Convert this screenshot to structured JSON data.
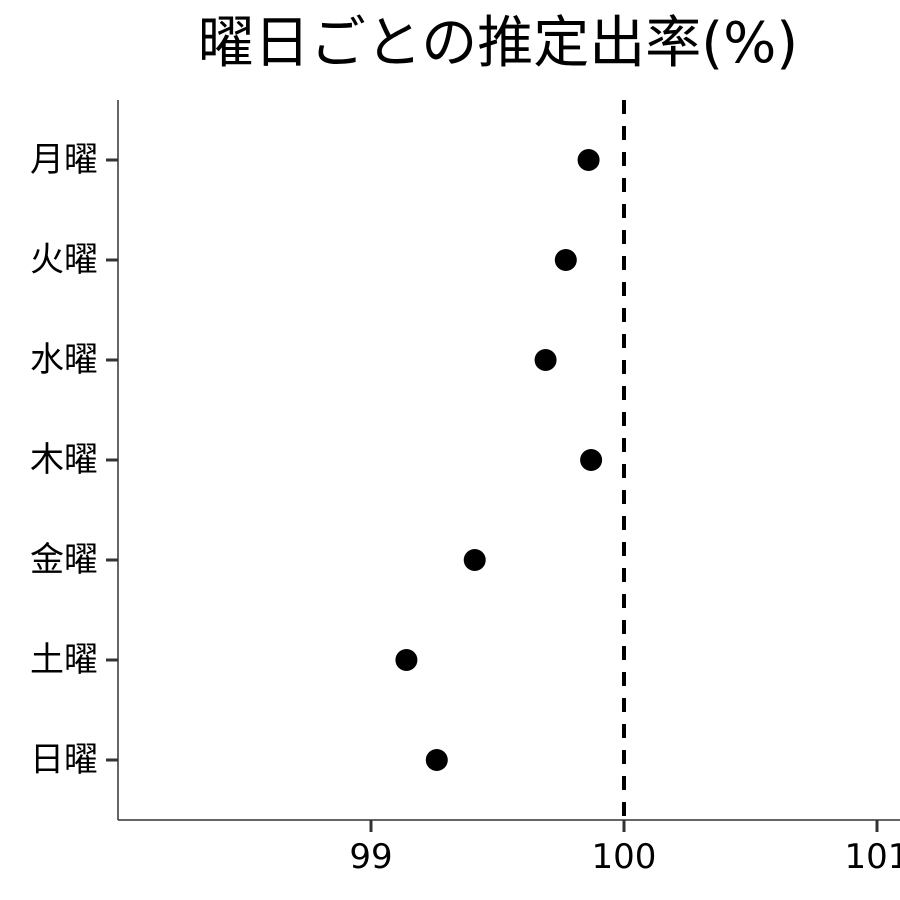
{
  "chart_data": {
    "type": "scatter",
    "title": "曜日ごとの推定出率(%)",
    "xlabel": "",
    "ylabel": "",
    "xlim": [
      98,
      101
    ],
    "x_ticks": [
      99,
      100,
      101
    ],
    "categories": [
      "月曜",
      "火曜",
      "水曜",
      "木曜",
      "金曜",
      "土曜",
      "日曜"
    ],
    "values": [
      99.86,
      99.77,
      99.69,
      99.87,
      99.41,
      99.14,
      99.26
    ],
    "reference_line": {
      "x": 100,
      "style": "dashed",
      "color": "#000000"
    },
    "marker_color": "#000000",
    "grid": false,
    "legend": "none"
  }
}
